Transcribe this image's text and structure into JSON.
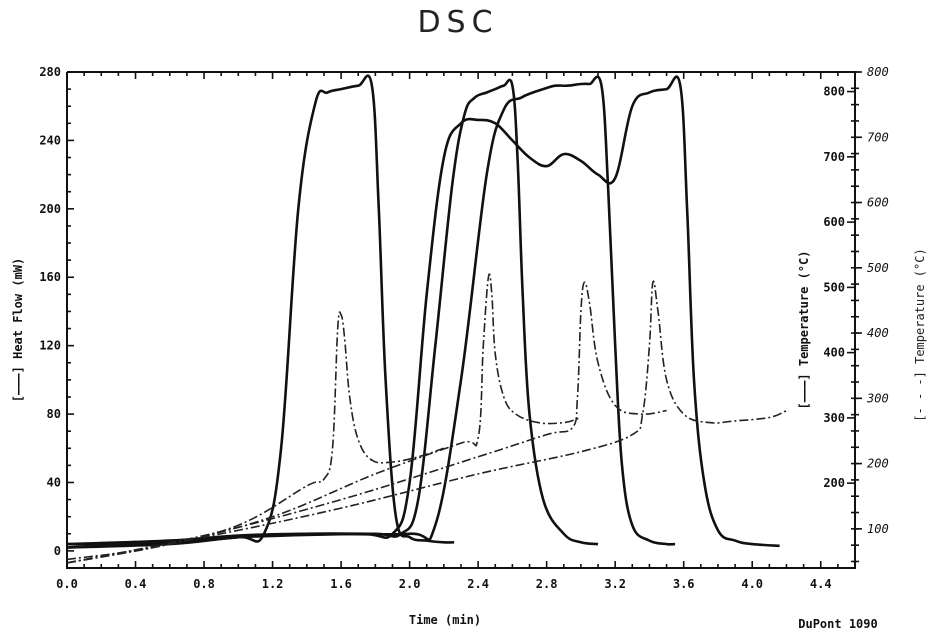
{
  "chart_data": {
    "type": "line",
    "title": "DSC",
    "xlabel": "Time (min)",
    "ylabel": "[———] Heat Flow (mW)",
    "y2label": "[———] Temperature (°C)",
    "y3label": "[- - -] Temperature (°C)",
    "footer": "DuPont 1090",
    "xlim": [
      0,
      4.6
    ],
    "ylim": [
      -10,
      280
    ],
    "y2lim": [
      40,
      800
    ],
    "x_ticks": [
      "0.0",
      "0.4",
      "0.8",
      "1.2",
      "1.6",
      "2.0",
      "2.4",
      "2.8",
      "3.2",
      "3.6",
      "4.0",
      "4.4"
    ],
    "x_tick_values": [
      0,
      0.4,
      0.8,
      1.2,
      1.6,
      2.0,
      2.4,
      2.8,
      3.2,
      3.6,
      4.0,
      4.4
    ],
    "y_ticks": [
      "0",
      "40",
      "80",
      "120",
      "160",
      "200",
      "240",
      "280"
    ],
    "y_tick_values": [
      0,
      40,
      80,
      120,
      160,
      200,
      240,
      280
    ],
    "y2_outer_ticks": [
      "100",
      "200",
      "300",
      "400",
      "500",
      "600",
      "700",
      "800"
    ],
    "y2_outer_values": [
      100,
      200,
      300,
      400,
      500,
      600,
      700,
      800
    ],
    "y2_inner_ticks": [
      "200",
      "300",
      "400",
      "500",
      "600",
      "700",
      "800"
    ],
    "y2_inner_values": [
      170,
      270,
      370,
      470,
      570,
      670,
      770
    ],
    "grid": false,
    "series": [
      {
        "kind": "heat_flow",
        "x": [
          0,
          0.6,
          1.0,
          1.15,
          1.25,
          1.35,
          1.45,
          1.52,
          1.6,
          1.7,
          1.78,
          1.82,
          1.86,
          1.92,
          2.0,
          2.1,
          2.2,
          2.26
        ],
        "y": [
          4,
          5,
          8,
          10,
          60,
          200,
          262,
          268,
          270,
          272,
          272,
          200,
          100,
          20,
          8,
          6,
          5,
          5
        ]
      },
      {
        "kind": "heat_flow",
        "x": [
          0,
          0.6,
          1.0,
          1.4,
          1.8,
          1.95,
          2.05,
          2.15,
          2.25,
          2.32,
          2.38,
          2.45,
          2.5,
          2.55,
          2.6,
          2.63,
          2.66,
          2.7,
          2.78,
          2.9,
          3.0,
          3.1
        ],
        "y": [
          2,
          4,
          8,
          10,
          10,
          10,
          30,
          120,
          215,
          255,
          265,
          268,
          270,
          272,
          272,
          230,
          150,
          80,
          30,
          10,
          5,
          4
        ]
      },
      {
        "kind": "heat_flow",
        "x": [
          0,
          0.6,
          1.0,
          1.4,
          2.0,
          2.15,
          2.3,
          2.45,
          2.55,
          2.65,
          2.72,
          2.78,
          2.85,
          2.92,
          3.0,
          3.05,
          3.12,
          3.16,
          3.2,
          3.24,
          3.3,
          3.4,
          3.5,
          3.55
        ],
        "y": [
          4,
          6,
          9,
          10,
          10,
          15,
          100,
          220,
          258,
          265,
          268,
          270,
          272,
          272,
          273,
          273,
          272,
          210,
          120,
          50,
          15,
          6,
          4,
          4
        ]
      },
      {
        "kind": "heat_flow",
        "x": [
          0,
          1.0,
          1.7,
          1.9,
          2.0,
          2.1,
          2.2,
          2.3,
          2.4,
          2.5,
          2.6,
          2.7,
          2.8,
          2.9,
          3.0,
          3.1,
          3.2,
          3.3,
          3.4,
          3.5,
          3.58,
          3.62,
          3.66,
          3.72,
          3.8,
          3.9,
          4.0,
          4.16
        ],
        "y": [
          2,
          8,
          10,
          10,
          40,
          150,
          230,
          250,
          252,
          250,
          240,
          230,
          225,
          232,
          228,
          220,
          218,
          260,
          268,
          270,
          272,
          200,
          100,
          40,
          12,
          6,
          4,
          3
        ]
      },
      {
        "kind": "temperature",
        "x": [
          0,
          0.5,
          1.0,
          1.4,
          1.5,
          1.55,
          1.58,
          1.6,
          1.62,
          1.65,
          1.7,
          1.78,
          1.9,
          2.05,
          2.2
        ],
        "y": [
          -5,
          2,
          15,
          38,
          42,
          60,
          130,
          138,
          125,
          90,
          65,
          53,
          52,
          55,
          60
        ]
      },
      {
        "kind": "temperature",
        "x": [
          0,
          0.6,
          1.2,
          1.8,
          2.3,
          2.4,
          2.43,
          2.46,
          2.48,
          2.5,
          2.55,
          2.62,
          2.75,
          2.9,
          3.0
        ],
        "y": [
          -7,
          4,
          20,
          45,
          63,
          66,
          120,
          160,
          150,
          115,
          90,
          80,
          75,
          75,
          78
        ]
      },
      {
        "kind": "temperature",
        "x": [
          0,
          0.8,
          1.6,
          2.4,
          2.8,
          2.95,
          2.98,
          3.0,
          3.02,
          3.05,
          3.1,
          3.2,
          3.35,
          3.5
        ],
        "y": [
          -7,
          9,
          30,
          55,
          68,
          72,
          90,
          140,
          157,
          145,
          110,
          85,
          80,
          82
        ]
      },
      {
        "kind": "temperature",
        "x": [
          0,
          0.8,
          1.6,
          2.4,
          3.0,
          3.3,
          3.36,
          3.4,
          3.42,
          3.45,
          3.5,
          3.6,
          3.75,
          3.9,
          4.1,
          4.2
        ],
        "y": [
          -7,
          8,
          25,
          45,
          58,
          68,
          80,
          120,
          157,
          140,
          100,
          80,
          75,
          76,
          78,
          82
        ]
      }
    ]
  }
}
